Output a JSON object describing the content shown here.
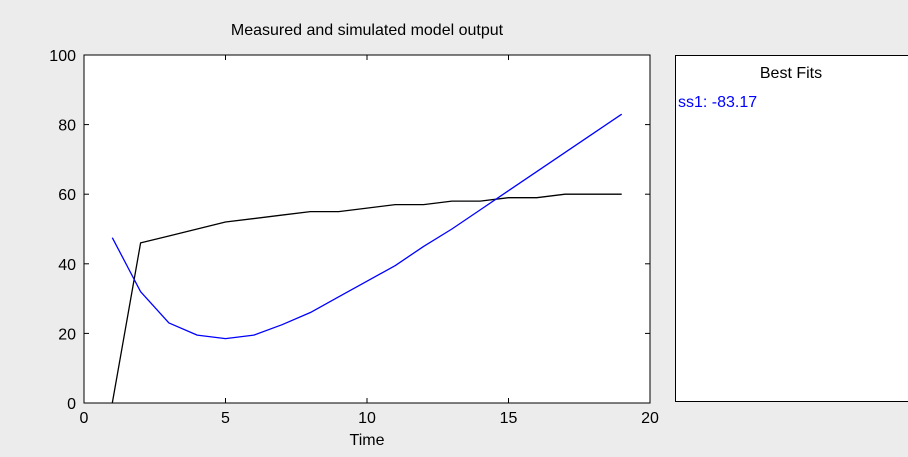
{
  "chart_data": {
    "type": "line",
    "title": "Measured and simulated model output",
    "xlabel": "Time",
    "ylabel": "",
    "xlim": [
      0,
      20
    ],
    "ylim": [
      0,
      100
    ],
    "xticks": [
      0,
      5,
      10,
      15,
      20
    ],
    "yticks": [
      0,
      20,
      40,
      60,
      80,
      100
    ],
    "grid": false,
    "series": [
      {
        "color": "#000000",
        "x": [
          1,
          2,
          3,
          4,
          5,
          6,
          7,
          8,
          9,
          10,
          11,
          12,
          13,
          14,
          15,
          16,
          17,
          18,
          19
        ],
        "y": [
          0,
          46,
          48,
          50,
          52,
          53,
          54,
          55,
          55,
          56,
          57,
          57,
          58,
          58,
          59,
          59,
          60,
          60,
          60
        ]
      },
      {
        "color": "#0000ff",
        "x": [
          1,
          2,
          3,
          4,
          5,
          6,
          7,
          8,
          9,
          10,
          11,
          12,
          13,
          14,
          15,
          16,
          17,
          18,
          19
        ],
        "y": [
          47.5,
          32,
          23,
          19.5,
          18.5,
          19.5,
          22.5,
          26,
          30.5,
          35,
          39.5,
          45,
          50,
          55.5,
          61,
          66.5,
          72,
          77.5,
          83
        ]
      }
    ]
  },
  "best_fits": {
    "title": "Best Fits",
    "entries": [
      {
        "label": "ss1: -83.17",
        "color": "#0000ff"
      }
    ]
  }
}
